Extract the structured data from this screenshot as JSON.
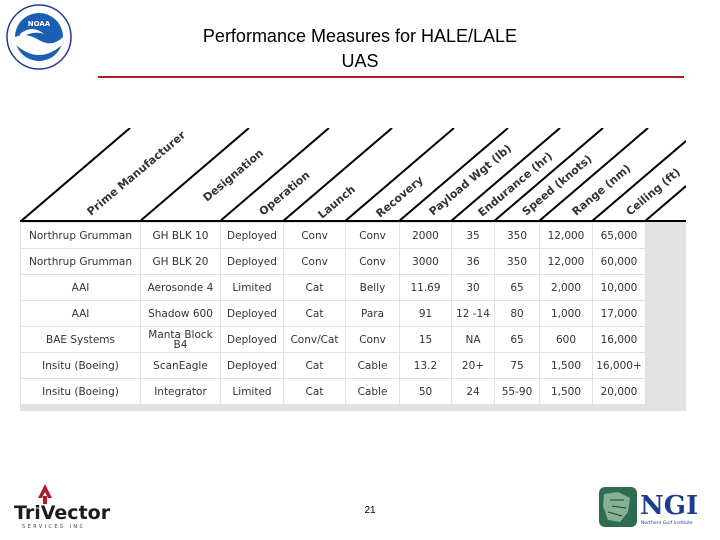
{
  "slide": {
    "title_line1": "Performance Measures for HALE/LALE",
    "title_line2": "UAS",
    "page_number": "21"
  },
  "logos": {
    "noaa": "NOAA",
    "trivector": "TriVector",
    "trivector_sub": "SERVICES INC",
    "ngi": "NGI",
    "ngi_sub": "Northern Gulf Institute"
  },
  "table": {
    "headers": [
      "Prime Manufacturer",
      "Designation",
      "Operation",
      "Launch",
      "Recovery",
      "Payload Wgt (lb)",
      "Endurance (hr)",
      "Speed (knots)",
      "Range (nm)",
      "Ceiling (ft)"
    ],
    "rows": [
      [
        "Northrup Grumman",
        "GH BLK 10",
        "Deployed",
        "Conv",
        "Conv",
        "2000",
        "35",
        "350",
        "12,000",
        "65,000"
      ],
      [
        "Northrup Grumman",
        "GH BLK 20",
        "Deployed",
        "Conv",
        "Conv",
        "3000",
        "36",
        "350",
        "12,000",
        "60,000"
      ],
      [
        "AAI",
        "Aerosonde 4",
        "Limited",
        "Cat",
        "Belly",
        "11.69",
        "30",
        "65",
        "2,000",
        "10,000"
      ],
      [
        "AAI",
        "Shadow 600",
        "Deployed",
        "Cat",
        "Para",
        "91",
        "12 -14",
        "80",
        "1,000",
        "17,000"
      ],
      [
        "BAE Systems",
        "Manta Block B4",
        "Deployed",
        "Conv/Cat",
        "Conv",
        "15",
        "NA",
        "65",
        "600",
        "16,000"
      ],
      [
        "Insitu (Boeing)",
        "ScanEagle",
        "Deployed",
        "Cat",
        "Cable",
        "13.2",
        "20+",
        "75",
        "1,500",
        "16,000+"
      ],
      [
        "Insitu (Boeing)",
        "Integrator",
        "Limited",
        "Cat",
        "Cable",
        "50",
        "24",
        "55-90",
        "1,500",
        "20,000"
      ]
    ]
  }
}
